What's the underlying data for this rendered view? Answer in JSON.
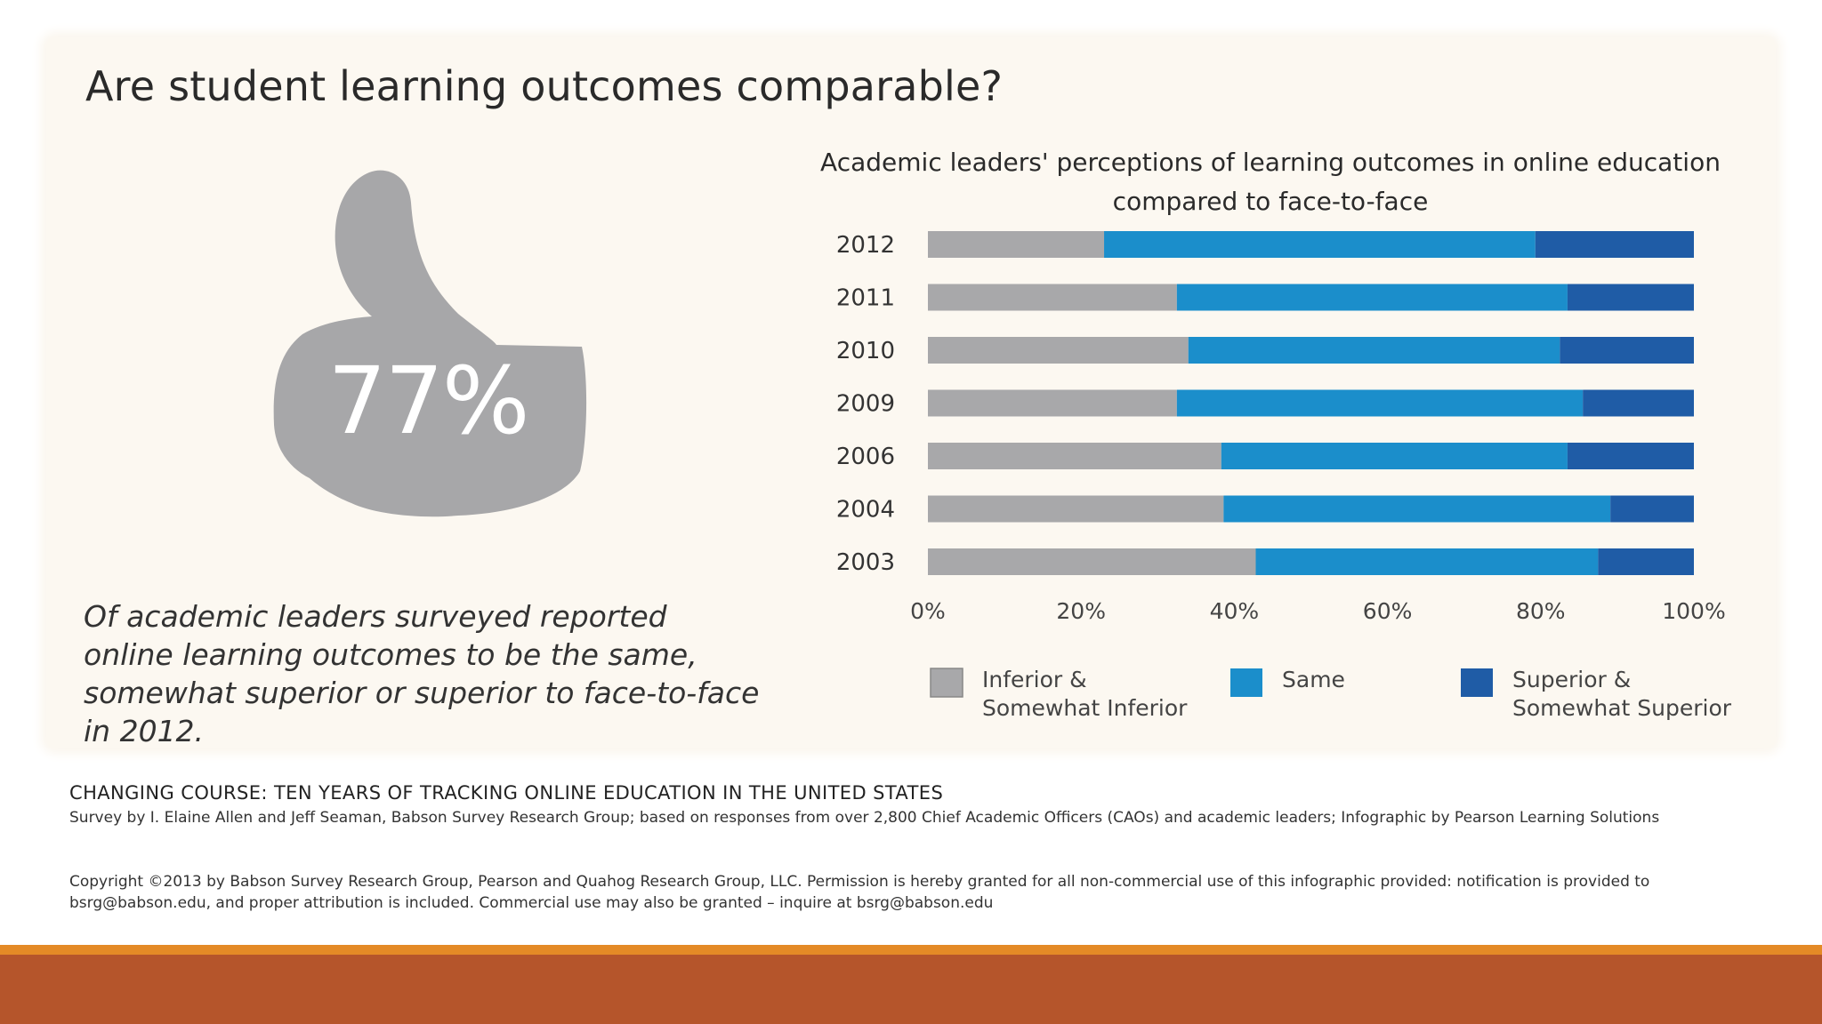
{
  "infographic": {
    "headline": "Are student learning outcomes comparable?",
    "big_stat": "77%",
    "caption": "Of academic leaders surveyed reported online learning outcomes to be the same, somewhat superior or superior to face-to-face in 2012."
  },
  "footer": {
    "title": "CHANGING COURSE: TEN YEARS OF TRACKING ONLINE EDUCATION IN THE UNITED STATES",
    "survey": "Survey by I. Elaine Allen and Jeff Seaman, Babson Survey Research Group; based on responses from over 2,800 Chief Academic Officers (CAOs) and academic leaders; Infographic by Pearson Learning Solutions",
    "copyright": "Copyright ©2013 by Babson Survey Research Group, Pearson and Quahog Research Group, LLC. Permission is hereby granted for all non-commercial use of this infographic provided: notification is provided to bsrg@babson.edu, and proper attribution is included. Commercial use may also be granted – inquire at bsrg@babson.edu"
  },
  "colors": {
    "thumb": "#a7a7a9",
    "inferior": "#a8a8aa",
    "same": "#1b8ecb",
    "superior": "#1f5ca6"
  },
  "chart_data": {
    "type": "bar",
    "orientation": "horizontal",
    "stacked": true,
    "title": "Academic leaders' perceptions of learning outcomes in online education compared to face-to-face",
    "title_lines": [
      "Academic leaders' perceptions of learning outcomes in online education",
      "compared to face-to-face"
    ],
    "categories": [
      "2012",
      "2011",
      "2010",
      "2009",
      "2006",
      "2004",
      "2003"
    ],
    "series": [
      {
        "name": "Inferior & Somewhat Inferior",
        "legend_lines": [
          "Inferior &",
          "Somewhat Inferior"
        ],
        "values": [
          23,
          32.5,
          34,
          32.5,
          38.3,
          38.6,
          42.8
        ]
      },
      {
        "name": "Same",
        "legend_lines": [
          "Same"
        ],
        "values": [
          56.3,
          51,
          48.5,
          53,
          45.2,
          50.5,
          44.7
        ]
      },
      {
        "name": "Superior & Somewhat Superior",
        "legend_lines": [
          "Superior &",
          "Somewhat Superior"
        ],
        "values": [
          20.7,
          16.5,
          17.5,
          14.5,
          16.5,
          10.9,
          12.5
        ]
      }
    ],
    "xlim": [
      0,
      100
    ],
    "xticks": [
      "0%",
      "20%",
      "40%",
      "60%",
      "80%",
      "100%"
    ],
    "grid": false,
    "legend_position": "bottom"
  }
}
